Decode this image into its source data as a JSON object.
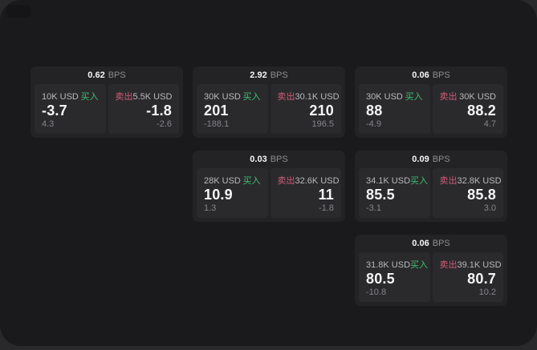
{
  "labels": {
    "bps_unit": "BPS",
    "buy": "买入",
    "sell": "卖出"
  },
  "colors": {
    "background": "#29292b",
    "surface": "#1a1a1c",
    "card": "#232325",
    "panel": "#2a2a2c",
    "buy_green": "#3fbf72",
    "sell_red": "#d15a78"
  },
  "cards": [
    {
      "row": 1,
      "col": 1,
      "bps": "0.62",
      "buy": {
        "amount": "10K USD",
        "price": "-3.7",
        "delta": "4.3"
      },
      "sell": {
        "amount": "5.5K USD",
        "price": "-1.8",
        "delta": "-2.6"
      }
    },
    {
      "row": 1,
      "col": 2,
      "bps": "2.92",
      "buy": {
        "amount": "30K USD",
        "price": "201",
        "delta": "-188.1"
      },
      "sell": {
        "amount": "30.1K USD",
        "price": "210",
        "delta": "196.5"
      }
    },
    {
      "row": 1,
      "col": 3,
      "bps": "0.06",
      "buy": {
        "amount": "30K USD",
        "price": "88",
        "delta": "-4.9"
      },
      "sell": {
        "amount": "30K USD",
        "price": "88.2",
        "delta": "4.7"
      }
    },
    {
      "row": 2,
      "col": 2,
      "bps": "0.03",
      "buy": {
        "amount": "28K USD",
        "price": "10.9",
        "delta": "1.3"
      },
      "sell": {
        "amount": "32.6K USD",
        "price": "11",
        "delta": "-1.8"
      }
    },
    {
      "row": 2,
      "col": 3,
      "bps": "0.09",
      "buy": {
        "amount": "34.1K USD",
        "price": "85.5",
        "delta": "-3.1"
      },
      "sell": {
        "amount": "32.8K USD",
        "price": "85.8",
        "delta": "3.0"
      }
    },
    {
      "row": 3,
      "col": 3,
      "bps": "0.06",
      "buy": {
        "amount": "31.8K USD",
        "price": "80.5",
        "delta": "-10.8"
      },
      "sell": {
        "amount": "39.1K USD",
        "price": "80.7",
        "delta": "10.2"
      }
    }
  ]
}
